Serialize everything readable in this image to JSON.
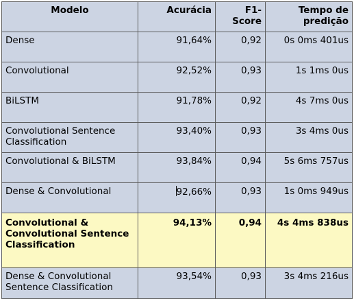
{
  "table": {
    "headers": {
      "model": "Modelo",
      "accuracy": "Acurácia",
      "f1": "F1-Score",
      "time": "Tempo de predição"
    },
    "rows": [
      {
        "model": "Dense",
        "accuracy": "91,64%",
        "f1": "0,92",
        "time": "0s 0ms 401us"
      },
      {
        "model": "Convolutional",
        "accuracy": "92,52%",
        "f1": "0,93",
        "time": "1s 1ms 0us"
      },
      {
        "model": "BiLSTM",
        "accuracy": "91,78%",
        "f1": "0,92",
        "time": "4s 7ms 0us"
      },
      {
        "model": "Convolutional Sentence Classification",
        "accuracy": "93,40%",
        "f1": "0,93",
        "time": "3s 4ms 0us"
      },
      {
        "model": "Convolutional & BiLSTM",
        "accuracy": "93,84%",
        "f1": "0,94",
        "time": "5s 6ms 757us"
      },
      {
        "model": "Dense & Convolutional",
        "accuracy": "92,66%",
        "f1": "0,93",
        "time": "1s 0ms 949us"
      },
      {
        "model": "Convolutional & Convolutional Sentence Classification",
        "accuracy": "94,13%",
        "f1": "0,94",
        "time": "4s 4ms 838us"
      },
      {
        "model": "Dense & Convolutional Sentence Classification",
        "accuracy": "93,54%",
        "f1": "0,93",
        "time": "3s 4ms 216us"
      }
    ],
    "highlight_color": "#fcf9c3",
    "cell_color": "#ccd4e3"
  }
}
